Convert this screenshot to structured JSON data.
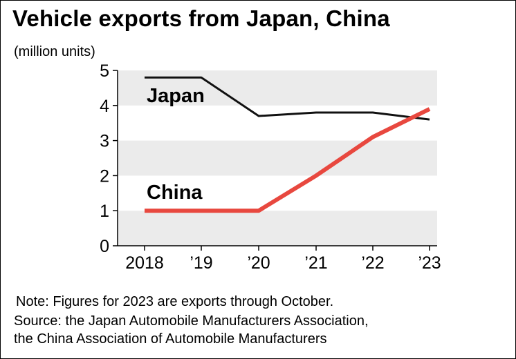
{
  "title": "Vehicle exports from Japan, China",
  "unit_label": "(million units)",
  "note": "Note: Figures for 2023 are exports through October.",
  "source_lines": [
    "Source: the Japan Automobile Manufacturers Association,",
    "the China Association of Automobile Manufacturers"
  ],
  "colors": {
    "japan": "#111111",
    "china": "#e8483f",
    "band": "#ebebeb"
  },
  "chart_data": {
    "type": "line",
    "title": "Vehicle exports from Japan, China",
    "xlabel": "",
    "ylabel": "(million units)",
    "categories": [
      "2018",
      "’19",
      "’20",
      "’21",
      "’22",
      "’23"
    ],
    "ylim": [
      0,
      5
    ],
    "yticks": [
      0,
      1,
      2,
      3,
      4,
      5
    ],
    "series": [
      {
        "name": "Japan",
        "values": [
          4.8,
          4.8,
          3.7,
          3.8,
          3.8,
          3.6
        ]
      },
      {
        "name": "China",
        "values": [
          1.0,
          1.0,
          1.0,
          2.0,
          3.1,
          3.9
        ]
      }
    ]
  }
}
